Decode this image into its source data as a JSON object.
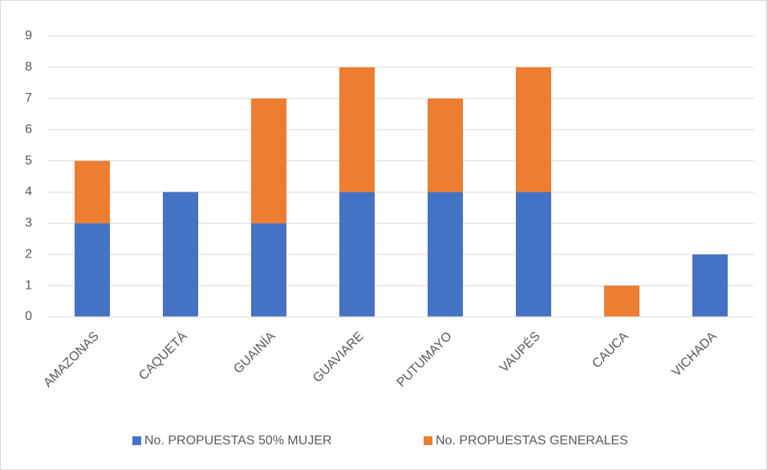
{
  "chart_data": {
    "type": "stacked_bar",
    "categories": [
      "AMAZONAS",
      "CAQUETÁ",
      "GUAINÍA",
      "GUAVIARE",
      "PUTUMAYO",
      "VAUPÉS",
      "CAUCA",
      "VICHADA"
    ],
    "series": [
      {
        "name": "No. PROPUESTAS 50% MUJER",
        "color": "#4472c4",
        "values": [
          3,
          4,
          3,
          4,
          4,
          4,
          0,
          2
        ]
      },
      {
        "name": "No. PROPUESTAS GENERALES",
        "color": "#ed7d31",
        "values": [
          2,
          0,
          4,
          4,
          3,
          4,
          1,
          0
        ]
      }
    ],
    "ylim": [
      0,
      9
    ],
    "yticks": [
      0,
      1,
      2,
      3,
      4,
      5,
      6,
      7,
      8,
      9
    ],
    "grid": true,
    "legend": "bottom"
  }
}
